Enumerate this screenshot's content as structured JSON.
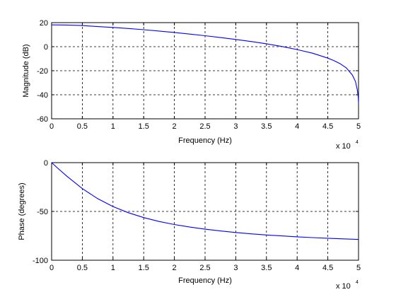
{
  "chart_data": [
    {
      "type": "line",
      "xlabel": "Frequency (Hz)",
      "ylabel": "Magnitude (dB)",
      "x_multiplier_label": "x 10",
      "x_multiplier_exponent": "4",
      "xlim": [
        0,
        5
      ],
      "ylim": [
        -60,
        20
      ],
      "x_ticks": [
        "0",
        "0.5",
        "1",
        "1.5",
        "2",
        "2.5",
        "3",
        "3.5",
        "4",
        "4.5",
        "5"
      ],
      "y_ticks": [
        "20",
        "0",
        "-20",
        "-40",
        "-60"
      ],
      "grid": true,
      "series": [
        {
          "color": "#0000ff",
          "x": [
            0,
            0.25,
            0.5,
            0.75,
            1.0,
            1.25,
            1.5,
            1.75,
            2.0,
            2.25,
            2.5,
            2.75,
            3.0,
            3.25,
            3.5,
            3.75,
            4.0,
            4.25,
            4.5,
            4.6,
            4.7,
            4.8,
            4.9,
            4.95,
            4.98,
            4.995,
            5.0
          ],
          "y": [
            18.1,
            18.0,
            17.6,
            16.7,
            16.0,
            15.1,
            14.1,
            13.0,
            11.8,
            10.5,
            9.1,
            7.6,
            6.0,
            4.3,
            2.4,
            0.2,
            -2.4,
            -5.4,
            -9.5,
            -11.6,
            -14.2,
            -17.6,
            -23.6,
            -29.0,
            -36.0,
            -42.0,
            -47.0
          ]
        }
      ]
    },
    {
      "type": "line",
      "xlabel": "Frequency (Hz)",
      "ylabel": "Phase (degrees)",
      "x_multiplier_label": "x 10",
      "x_multiplier_exponent": "4",
      "xlim": [
        0,
        5
      ],
      "ylim": [
        -100,
        0
      ],
      "x_ticks": [
        "0",
        "0.5",
        "1",
        "1.5",
        "2",
        "2.5",
        "3",
        "3.5",
        "4",
        "4.5",
        "5"
      ],
      "y_ticks": [
        "0",
        "-50",
        "-100"
      ],
      "grid": true,
      "series": [
        {
          "color": "#0000ff",
          "x": [
            0,
            0.1,
            0.25,
            0.5,
            0.75,
            1.0,
            1.25,
            1.5,
            1.75,
            2.0,
            2.25,
            2.5,
            2.75,
            3.0,
            3.25,
            3.5,
            3.75,
            4.0,
            4.25,
            4.5,
            4.75,
            5.0
          ],
          "y": [
            0,
            -5.7,
            -14.0,
            -26.6,
            -36.9,
            -45.0,
            -51.3,
            -56.3,
            -60.3,
            -63.4,
            -66.0,
            -68.2,
            -70.0,
            -71.6,
            -73.0,
            -74.1,
            -75.1,
            -76.0,
            -76.8,
            -77.5,
            -78.1,
            -78.7
          ]
        }
      ]
    }
  ]
}
